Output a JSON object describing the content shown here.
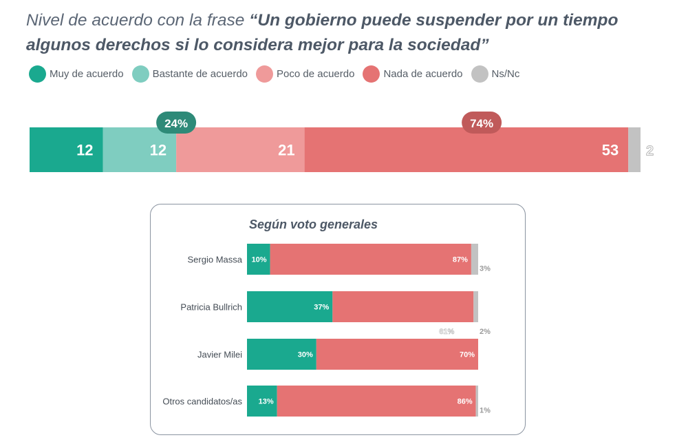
{
  "chart_data": {
    "type": "bar",
    "title_prefix": "Nivel de acuerdo con la frase ",
    "title_quote": "“Un gobierno puede suspender por un tiempo algunos derechos si lo considera mejor para la sociedad”",
    "legend": [
      {
        "label": "Muy de acuerdo",
        "color": "#1aa98f"
      },
      {
        "label": "Bastante de acuerdo",
        "color": "#7fcdc0"
      },
      {
        "label": "Poco de acuerdo",
        "color": "#ef9a9a"
      },
      {
        "label": "Nada de acuerdo",
        "color": "#e57373"
      },
      {
        "label": "Ns/Nc",
        "color": "#c2c2c2"
      }
    ],
    "overall": {
      "values": [
        12,
        12,
        21,
        53,
        2
      ],
      "labels": [
        "12",
        "12",
        "21",
        "53",
        "2"
      ],
      "callouts": [
        {
          "label": "24%",
          "value": 24,
          "color": "#2e8a78"
        },
        {
          "label": "74%",
          "value": 74,
          "color": "#c05a5a"
        }
      ]
    },
    "breakdown": {
      "title": "Según voto generales",
      "colors": [
        "#1aa98f",
        "#e57373",
        "#c2c2c2"
      ],
      "rows": [
        {
          "name": "Sergio Massa",
          "values": [
            10,
            87,
            3
          ],
          "labels": [
            "10%",
            "87%",
            "3%"
          ]
        },
        {
          "name": "Patricia Bullrich",
          "values": [
            37,
            61,
            2
          ],
          "labels": [
            "37%",
            "61%",
            "2%"
          ]
        },
        {
          "name": "Javier Milei",
          "values": [
            30,
            70,
            0
          ],
          "labels": [
            "30%",
            "70%",
            ""
          ]
        },
        {
          "name": "Otros candidatos/as",
          "values": [
            13,
            86,
            1
          ],
          "labels": [
            "13%",
            "86%",
            "1%"
          ]
        }
      ]
    }
  }
}
